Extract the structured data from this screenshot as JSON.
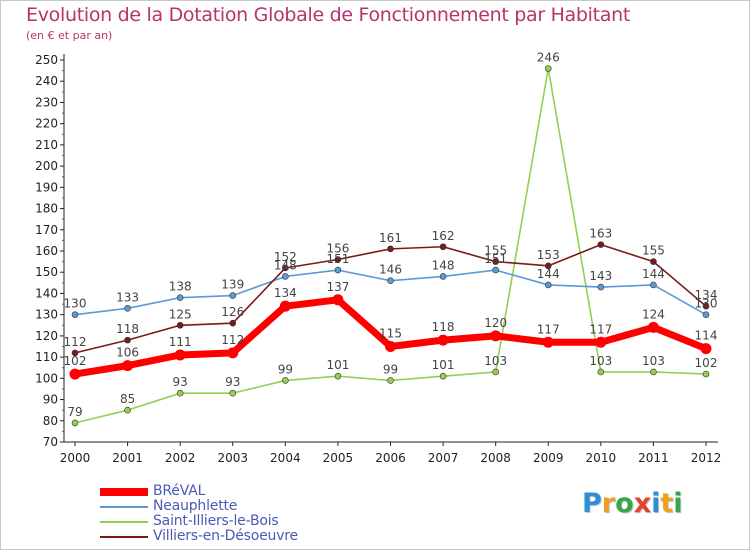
{
  "header": {
    "title": "Evolution de la Dotation Globale de Fonctionnement par Habitant",
    "subtitle": "(en € et par an)"
  },
  "logo": {
    "text": "Proxiti",
    "letters": [
      "P",
      "r",
      "o",
      "x",
      "i",
      "t",
      "i"
    ],
    "colors": [
      "#2e8fd6",
      "#f0a020",
      "#3aa54a",
      "#e0452f",
      "#2e8fd6",
      "#f0a020",
      "#3aa54a"
    ]
  },
  "chart_data": {
    "type": "line",
    "title": "Evolution de la Dotation Globale de Fonctionnement par Habitant",
    "subtitle": "(en € et par an)",
    "xlabel": "",
    "ylabel": "",
    "x": [
      "2000",
      "2001",
      "2002",
      "2003",
      "2004",
      "2005",
      "2006",
      "2007",
      "2008",
      "2009",
      "2010",
      "2011",
      "2012"
    ],
    "ylim": [
      70,
      250
    ],
    "yticks": [
      70,
      80,
      90,
      100,
      110,
      120,
      130,
      140,
      150,
      160,
      170,
      180,
      190,
      200,
      210,
      220,
      230,
      240,
      250
    ],
    "grid": false,
    "legend_position": "bottom-left",
    "series": [
      {
        "name": "BRéVAL",
        "values": [
          102,
          106,
          111,
          112,
          134,
          137,
          115,
          118,
          120,
          117,
          117,
          124,
          114
        ],
        "color": "#ff0000",
        "labeled": true
      },
      {
        "name": "Neauphlette",
        "values": [
          130,
          133,
          138,
          139,
          148,
          151,
          146,
          148,
          151,
          144,
          143,
          144,
          130
        ],
        "color": "#5b9bd5",
        "labeled": true
      },
      {
        "name": "Saint-Illiers-le-Bois",
        "values": [
          79,
          85,
          93,
          93,
          99,
          101,
          99,
          101,
          103,
          246,
          103,
          103,
          102
        ],
        "color": "#92d050",
        "labeled": true
      },
      {
        "name": "Villiers-en-Désoeuvre",
        "values": [
          112,
          118,
          125,
          126,
          152,
          156,
          161,
          162,
          155,
          153,
          163,
          155,
          134
        ],
        "color": "#7a1a1a",
        "labeled": true
      }
    ]
  }
}
